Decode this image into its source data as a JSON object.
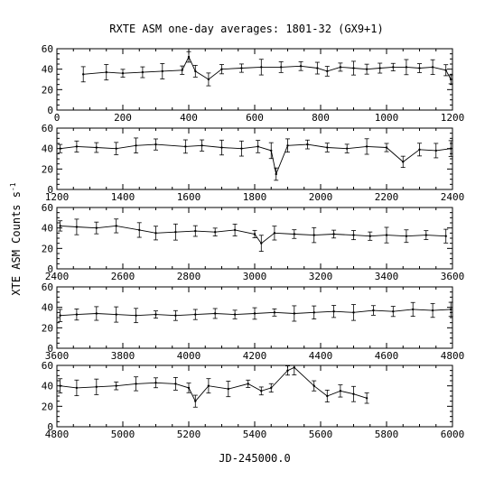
{
  "chart_data": {
    "type": "line",
    "title": "RXTE ASM one-day averages: 1801-32 (GX9+1)",
    "xlabel": "JD-245000.0",
    "ylabel": "XTE ASM Counts s",
    "ylabel_superscript": "-1",
    "error_bars": true,
    "panels": [
      {
        "xlim": [
          0,
          1200
        ],
        "ylim": [
          0,
          60
        ],
        "xticks": [
          "0",
          "200",
          "400",
          "600",
          "800",
          "1000",
          "1200"
        ],
        "yticks": [
          "0",
          "20",
          "40",
          "60"
        ],
        "x": [
          80,
          150,
          200,
          260,
          320,
          380,
          400,
          420,
          460,
          500,
          560,
          620,
          680,
          740,
          790,
          820,
          860,
          900,
          940,
          980,
          1020,
          1060,
          1100,
          1140,
          1180,
          1195
        ],
        "y": [
          35,
          37,
          36,
          37,
          38,
          39,
          52,
          38,
          30,
          40,
          41,
          42,
          42,
          43,
          41,
          38,
          42,
          41,
          40,
          41,
          42,
          42,
          41,
          42,
          39,
          30
        ]
      },
      {
        "xlim": [
          1200,
          2400
        ],
        "ylim": [
          0,
          60
        ],
        "xticks": [
          "1200",
          "1400",
          "1600",
          "1800",
          "2000",
          "2200",
          "2400"
        ],
        "yticks": [
          "0",
          "20",
          "40",
          "60"
        ],
        "x": [
          1210,
          1260,
          1320,
          1380,
          1440,
          1500,
          1590,
          1640,
          1700,
          1760,
          1810,
          1850,
          1865,
          1900,
          1960,
          2020,
          2080,
          2140,
          2200,
          2250,
          2300,
          2350,
          2395
        ],
        "y": [
          40,
          42,
          41,
          40,
          43,
          44,
          42,
          43,
          41,
          40,
          42,
          38,
          15,
          43,
          44,
          41,
          40,
          42,
          41,
          27,
          39,
          38,
          40
        ]
      },
      {
        "xlim": [
          2400,
          3600
        ],
        "ylim": [
          0,
          60
        ],
        "xticks": [
          "2400",
          "2600",
          "2800",
          "3000",
          "3200",
          "3400",
          "3600"
        ],
        "yticks": [
          "0",
          "20",
          "40",
          "60"
        ],
        "x": [
          2410,
          2460,
          2520,
          2580,
          2650,
          2700,
          2760,
          2820,
          2880,
          2940,
          3000,
          3020,
          3060,
          3120,
          3180,
          3240,
          3300,
          3350,
          3400,
          3460,
          3520,
          3580
        ],
        "y": [
          42,
          41,
          40,
          42,
          38,
          35,
          36,
          37,
          36,
          38,
          34,
          25,
          35,
          34,
          33,
          34,
          33,
          32,
          33,
          32,
          33,
          32
        ]
      },
      {
        "xlim": [
          3600,
          4800
        ],
        "ylim": [
          0,
          60
        ],
        "xticks": [
          "3600",
          "3800",
          "4000",
          "4200",
          "4400",
          "4600",
          "4800"
        ],
        "yticks": [
          "0",
          "20",
          "40",
          "60"
        ],
        "x": [
          3610,
          3660,
          3720,
          3780,
          3840,
          3900,
          3960,
          4020,
          4080,
          4140,
          4200,
          4260,
          4320,
          4380,
          4440,
          4500,
          4560,
          4620,
          4680,
          4740,
          4795
        ],
        "y": [
          32,
          33,
          34,
          33,
          32,
          33,
          32,
          33,
          34,
          33,
          34,
          35,
          34,
          35,
          36,
          35,
          37,
          36,
          38,
          37,
          38
        ]
      },
      {
        "xlim": [
          4800,
          6000
        ],
        "ylim": [
          0,
          60
        ],
        "xticks": [
          "4800",
          "5000",
          "5200",
          "5400",
          "5600",
          "5800",
          "6000"
        ],
        "yticks": [
          "0",
          "20",
          "40",
          "60"
        ],
        "x": [
          4810,
          4860,
          4920,
          4980,
          5040,
          5100,
          5160,
          5200,
          5220,
          5260,
          5320,
          5380,
          5420,
          5450,
          5500,
          5520,
          5580,
          5620,
          5660,
          5700,
          5740
        ],
        "y": [
          40,
          38,
          39,
          40,
          42,
          43,
          42,
          38,
          25,
          40,
          37,
          42,
          35,
          38,
          55,
          58,
          40,
          30,
          35,
          32,
          28
        ]
      }
    ]
  }
}
